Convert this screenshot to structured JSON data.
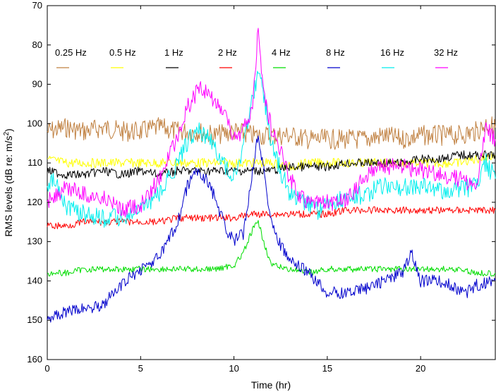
{
  "chart_data": {
    "type": "line",
    "xlabel": "Time (hr)",
    "ylabel": "RMS levels (dB re: m/s",
    "ylabel_sup": "2",
    "ylabel_end": ")",
    "xlim": [
      0,
      24
    ],
    "ylim": [
      70,
      160
    ],
    "y_inverted": true,
    "x_ticks": [
      0,
      5,
      10,
      15,
      20
    ],
    "y_ticks": [
      70,
      80,
      90,
      100,
      110,
      120,
      130,
      140,
      150,
      160
    ],
    "grid": false,
    "legend_position": "top",
    "series": [
      {
        "name": "0.25 Hz",
        "color": "#c08040",
        "x": [
          0,
          1,
          2,
          3,
          4,
          5,
          6,
          7,
          8,
          9,
          10,
          11,
          12,
          13,
          14,
          15,
          16,
          17,
          18,
          19,
          20,
          21,
          22,
          23,
          23.5,
          24
        ],
        "y": [
          102,
          101,
          102,
          101,
          102,
          102,
          101,
          102,
          102,
          103,
          102,
          103,
          103,
          103,
          104,
          104,
          104,
          104,
          103,
          104,
          103,
          103,
          103,
          102,
          100,
          101
        ]
      },
      {
        "name": "0.5 Hz",
        "color": "#ffff00",
        "x": [
          0,
          1,
          2,
          3,
          4,
          5,
          6,
          7,
          8,
          9,
          10,
          11,
          12,
          13,
          14,
          15,
          16,
          17,
          18,
          19,
          20,
          21,
          22,
          23,
          24
        ],
        "y": [
          109,
          110,
          110,
          110,
          110,
          110,
          110,
          110,
          110,
          110,
          110,
          110,
          110,
          111,
          110,
          110,
          110,
          110,
          110,
          110,
          110,
          110,
          110,
          109,
          108
        ]
      },
      {
        "name": "1 Hz",
        "color": "#000000",
        "x": [
          0,
          1,
          2,
          3,
          4,
          5,
          6,
          7,
          8,
          9,
          10,
          11,
          12,
          13,
          14,
          15,
          16,
          17,
          18,
          19,
          20,
          21,
          22,
          23,
          24
        ],
        "y": [
          112,
          113,
          113,
          112,
          113,
          112,
          113,
          112,
          112,
          112,
          112,
          112,
          112,
          111,
          111,
          111,
          110,
          110,
          110,
          110,
          109,
          109,
          108,
          108,
          108
        ]
      },
      {
        "name": "2 Hz",
        "color": "#ff0000",
        "x": [
          0,
          1,
          2,
          3,
          4,
          5,
          6,
          7,
          8,
          9,
          10,
          11,
          12,
          13,
          14,
          15,
          16,
          17,
          18,
          19,
          20,
          21,
          22,
          23,
          24
        ],
        "y": [
          126,
          126,
          125,
          125,
          125,
          125,
          125,
          124,
          124,
          124,
          124,
          123,
          123,
          123,
          123,
          123,
          122,
          122,
          122,
          122,
          122,
          122,
          122,
          122,
          122
        ]
      },
      {
        "name": "4 Hz",
        "color": "#00dd00",
        "x": [
          0,
          1,
          2,
          3,
          4,
          5,
          6,
          7,
          8,
          9,
          10,
          10.5,
          11,
          11.3,
          11.6,
          12,
          13,
          14,
          15,
          16,
          17,
          18,
          19,
          20,
          21,
          22,
          23,
          24
        ],
        "y": [
          138,
          138,
          137,
          137,
          137,
          137,
          137,
          137,
          137,
          137,
          136,
          133,
          127,
          125,
          130,
          136,
          137,
          138,
          137,
          137,
          137,
          137,
          137,
          137,
          137,
          137,
          138,
          138
        ]
      },
      {
        "name": "8 Hz",
        "color": "#0000cc",
        "x": [
          0,
          0.5,
          1,
          2,
          3,
          4,
          5,
          6,
          7,
          7.5,
          8,
          8.5,
          9,
          9.5,
          10,
          10.5,
          11,
          11.3,
          11.6,
          12,
          12.5,
          13,
          14,
          15,
          16,
          17,
          18,
          19,
          19.5,
          20,
          21,
          22,
          22.5,
          23,
          24
        ],
        "y": [
          149,
          149,
          148,
          147,
          146,
          141,
          137,
          134,
          125,
          116,
          112,
          114,
          119,
          126,
          130,
          128,
          112,
          102,
          112,
          125,
          131,
          135,
          138,
          143,
          143,
          142,
          140,
          138,
          133,
          140,
          140,
          142,
          143,
          141,
          140
        ]
      },
      {
        "name": "16 Hz",
        "color": "#00eeee",
        "x": [
          0,
          0.5,
          1,
          1.5,
          2,
          3,
          4,
          5,
          6,
          7,
          7.5,
          8,
          8.5,
          9,
          9.5,
          10,
          10.5,
          11,
          11.3,
          11.6,
          12,
          12.5,
          13,
          14,
          14.5,
          15,
          16,
          17,
          18,
          19,
          20,
          21,
          22,
          23,
          23.5,
          24
        ],
        "y": [
          116,
          114,
          121,
          122,
          123,
          124,
          124,
          122,
          118,
          110,
          105,
          101,
          103,
          106,
          111,
          113,
          106,
          94,
          86,
          93,
          105,
          112,
          118,
          120,
          122,
          120,
          119,
          118,
          116,
          116,
          116,
          117,
          117,
          116,
          110,
          114
        ]
      },
      {
        "name": "32 Hz",
        "color": "#ff00ff",
        "x": [
          0,
          0.3,
          0.6,
          1,
          2,
          3,
          4,
          5,
          6,
          7,
          7.5,
          8,
          8.3,
          9,
          9.5,
          10,
          10.5,
          11,
          11.3,
          11.6,
          12,
          12.5,
          13,
          13.5,
          14,
          15,
          16,
          16.5,
          17,
          18,
          19,
          20,
          21,
          22,
          23,
          23.5,
          24
        ],
        "y": [
          120,
          118,
          119,
          116,
          118,
          119,
          122,
          121,
          114,
          103,
          96,
          92,
          91,
          94,
          98,
          104,
          102,
          96,
          76,
          92,
          101,
          107,
          114,
          118,
          120,
          120,
          120,
          117,
          113,
          111,
          111,
          112,
          113,
          114,
          116,
          101,
          104
        ]
      }
    ]
  }
}
